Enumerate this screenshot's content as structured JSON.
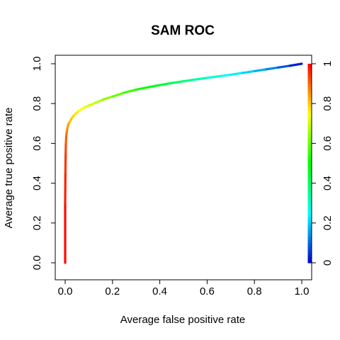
{
  "chart_data": {
    "type": "line",
    "title": "SAM ROC",
    "xlabel": "Average false positive rate",
    "ylabel": "Average true positive rate",
    "xlim": [
      0,
      1
    ],
    "ylim": [
      0,
      1
    ],
    "x_ticks": [
      "0.0",
      "0.2",
      "0.4",
      "0.6",
      "0.8",
      "1.0"
    ],
    "y_ticks": [
      "0.0",
      "0.2",
      "0.4",
      "0.6",
      "0.8",
      "1.0"
    ],
    "colorbar": {
      "ticks": [
        "0",
        "0.2",
        "0.4",
        "0.6",
        "0.8",
        "1"
      ],
      "colors": [
        "#0000cc",
        "#00ffff",
        "#00ff00",
        "#ffff00",
        "#ff0000"
      ],
      "range": [
        0,
        1
      ]
    },
    "grid": false,
    "series": [
      {
        "x": [
          0.0,
          0.0,
          0.001,
          0.002,
          0.003,
          0.005,
          0.007,
          0.01,
          0.015,
          0.02,
          0.03,
          0.04,
          0.06,
          0.08,
          0.1,
          0.13,
          0.16,
          0.2,
          0.25,
          0.3,
          0.35,
          0.4,
          0.45,
          0.5,
          0.55,
          0.6,
          0.65,
          0.7,
          0.75,
          0.8,
          0.85,
          0.9,
          0.95,
          1.0
        ],
        "y": [
          0.0,
          0.3,
          0.45,
          0.55,
          0.6,
          0.64,
          0.66,
          0.68,
          0.7,
          0.71,
          0.73,
          0.745,
          0.765,
          0.78,
          0.79,
          0.805,
          0.82,
          0.835,
          0.855,
          0.87,
          0.882,
          0.893,
          0.903,
          0.912,
          0.921,
          0.929,
          0.937,
          0.945,
          0.954,
          0.963,
          0.972,
          0.981,
          0.99,
          1.0
        ],
        "cutoff": [
          1.0,
          0.98,
          0.96,
          0.94,
          0.92,
          0.9,
          0.88,
          0.86,
          0.84,
          0.82,
          0.8,
          0.78,
          0.76,
          0.74,
          0.72,
          0.69,
          0.66,
          0.62,
          0.58,
          0.54,
          0.5,
          0.46,
          0.42,
          0.38,
          0.35,
          0.32,
          0.28,
          0.25,
          0.22,
          0.19,
          0.15,
          0.11,
          0.06,
          0.0
        ]
      }
    ]
  }
}
